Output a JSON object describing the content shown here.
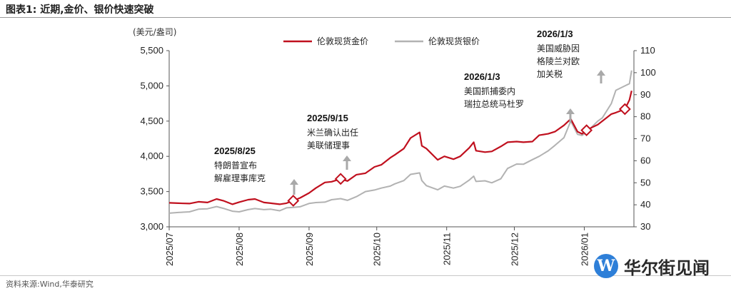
{
  "header": {
    "title": "图表1:  近期,金价、银价快速突破"
  },
  "source": "资料来源:Wind,华泰研究",
  "watermark": {
    "logo_letter": "W",
    "text": "华尔街见闻"
  },
  "left_unit": "(美元/盎司)",
  "chart_data": {
    "type": "line",
    "x_ticks": [
      "2025/07",
      "2025/08",
      "2025/09",
      "2025/10",
      "2025/11",
      "2025/12",
      "2026/01"
    ],
    "y_left_ticks": [
      "3,000",
      "3,500",
      "4,000",
      "4,500",
      "5,000",
      "5,500"
    ],
    "y_left_range": [
      3000,
      5500
    ],
    "y_right_ticks": [
      "30",
      "40",
      "50",
      "60",
      "70",
      "80",
      "90",
      "100",
      "110"
    ],
    "y_right_range": [
      30,
      110
    ],
    "legend": {
      "position": "top-center"
    },
    "colors": {
      "gold": "#c0101e",
      "silver": "#b2b2b2",
      "arrow": "#a9a9a9"
    },
    "series": [
      {
        "name": "伦敦现货金价",
        "axis": "left",
        "points": [
          [
            "2025-07-01",
            3340
          ],
          [
            "2025-07-05",
            3335
          ],
          [
            "2025-07-10",
            3330
          ],
          [
            "2025-07-14",
            3355
          ],
          [
            "2025-07-18",
            3345
          ],
          [
            "2025-07-22",
            3395
          ],
          [
            "2025-07-25",
            3370
          ],
          [
            "2025-07-29",
            3320
          ],
          [
            "2025-08-01",
            3350
          ],
          [
            "2025-08-05",
            3385
          ],
          [
            "2025-08-08",
            3395
          ],
          [
            "2025-08-12",
            3345
          ],
          [
            "2025-08-15",
            3335
          ],
          [
            "2025-08-19",
            3320
          ],
          [
            "2025-08-22",
            3335
          ],
          [
            "2025-08-25",
            3370
          ],
          [
            "2025-08-28",
            3410
          ],
          [
            "2025-09-01",
            3480
          ],
          [
            "2025-09-04",
            3550
          ],
          [
            "2025-09-08",
            3630
          ],
          [
            "2025-09-11",
            3640
          ],
          [
            "2025-09-15",
            3680
          ],
          [
            "2025-09-18",
            3650
          ],
          [
            "2025-09-22",
            3740
          ],
          [
            "2025-09-26",
            3760
          ],
          [
            "2025-09-30",
            3850
          ],
          [
            "2025-10-03",
            3880
          ],
          [
            "2025-10-07",
            3980
          ],
          [
            "2025-10-09",
            4020
          ],
          [
            "2025-10-13",
            4110
          ],
          [
            "2025-10-16",
            4260
          ],
          [
            "2025-10-20",
            4340
          ],
          [
            "2025-10-21",
            4150
          ],
          [
            "2025-10-23",
            4110
          ],
          [
            "2025-10-28",
            3950
          ],
          [
            "2025-10-31",
            4000
          ],
          [
            "2025-11-04",
            3960
          ],
          [
            "2025-11-07",
            4000
          ],
          [
            "2025-11-11",
            4120
          ],
          [
            "2025-11-13",
            4200
          ],
          [
            "2025-11-14",
            4080
          ],
          [
            "2025-11-18",
            4060
          ],
          [
            "2025-11-21",
            4070
          ],
          [
            "2025-11-25",
            4140
          ],
          [
            "2025-11-28",
            4200
          ],
          [
            "2025-12-02",
            4210
          ],
          [
            "2025-12-05",
            4200
          ],
          [
            "2025-12-09",
            4210
          ],
          [
            "2025-12-12",
            4300
          ],
          [
            "2025-12-16",
            4320
          ],
          [
            "2025-12-19",
            4350
          ],
          [
            "2025-12-23",
            4440
          ],
          [
            "2025-12-26",
            4530
          ],
          [
            "2025-12-29",
            4350
          ],
          [
            "2025-12-31",
            4320
          ],
          [
            "2026-01-02",
            4370
          ],
          [
            "2026-01-05",
            4420
          ],
          [
            "2026-01-07",
            4450
          ],
          [
            "2026-01-09",
            4500
          ],
          [
            "2026-01-13",
            4600
          ],
          [
            "2026-01-15",
            4620
          ],
          [
            "2026-01-19",
            4670
          ],
          [
            "2026-01-21",
            4800
          ],
          [
            "2026-01-22",
            4930
          ]
        ],
        "markers": [
          [
            "2025-08-25",
            3370
          ],
          [
            "2025-09-15",
            3680
          ],
          [
            "2026-01-02",
            4370
          ],
          [
            "2026-01-19",
            4670
          ]
        ]
      },
      {
        "name": "伦敦现货银价",
        "axis": "right",
        "points": [
          [
            "2025-07-01",
            36.2
          ],
          [
            "2025-07-05",
            36.5
          ],
          [
            "2025-07-10",
            36.8
          ],
          [
            "2025-07-14",
            38.0
          ],
          [
            "2025-07-18",
            38.2
          ],
          [
            "2025-07-22",
            39.2
          ],
          [
            "2025-07-25",
            38.4
          ],
          [
            "2025-07-29",
            37.1
          ],
          [
            "2025-08-01",
            36.8
          ],
          [
            "2025-08-05",
            37.8
          ],
          [
            "2025-08-08",
            38.3
          ],
          [
            "2025-08-12",
            37.8
          ],
          [
            "2025-08-15",
            38.0
          ],
          [
            "2025-08-19",
            37.3
          ],
          [
            "2025-08-22",
            38.6
          ],
          [
            "2025-08-25",
            38.8
          ],
          [
            "2025-08-28",
            39.1
          ],
          [
            "2025-09-01",
            40.6
          ],
          [
            "2025-09-04",
            41.0
          ],
          [
            "2025-09-08",
            41.2
          ],
          [
            "2025-09-11",
            42.3
          ],
          [
            "2025-09-15",
            42.8
          ],
          [
            "2025-09-18",
            42.0
          ],
          [
            "2025-09-22",
            43.7
          ],
          [
            "2025-09-26",
            46.0
          ],
          [
            "2025-09-30",
            46.7
          ],
          [
            "2025-10-03",
            47.6
          ],
          [
            "2025-10-07",
            48.5
          ],
          [
            "2025-10-09",
            49.5
          ],
          [
            "2025-10-13",
            51.0
          ],
          [
            "2025-10-16",
            53.8
          ],
          [
            "2025-10-20",
            54.5
          ],
          [
            "2025-10-21",
            51.0
          ],
          [
            "2025-10-23",
            48.7
          ],
          [
            "2025-10-28",
            46.8
          ],
          [
            "2025-10-31",
            48.5
          ],
          [
            "2025-11-04",
            47.6
          ],
          [
            "2025-11-07",
            48.4
          ],
          [
            "2025-11-11",
            51.2
          ],
          [
            "2025-11-13",
            53.0
          ],
          [
            "2025-11-14",
            50.6
          ],
          [
            "2025-11-18",
            50.9
          ],
          [
            "2025-11-21",
            50.0
          ],
          [
            "2025-11-25",
            51.8
          ],
          [
            "2025-11-28",
            56.5
          ],
          [
            "2025-12-02",
            58.5
          ],
          [
            "2025-12-05",
            58.4
          ],
          [
            "2025-12-09",
            60.5
          ],
          [
            "2025-12-12",
            62.0
          ],
          [
            "2025-12-16",
            64.5
          ],
          [
            "2025-12-19",
            67.0
          ],
          [
            "2025-12-23",
            70.5
          ],
          [
            "2025-12-26",
            78.0
          ],
          [
            "2025-12-29",
            72.0
          ],
          [
            "2025-12-31",
            71.5
          ],
          [
            "2026-01-02",
            73.0
          ],
          [
            "2026-01-05",
            76.0
          ],
          [
            "2026-01-07",
            78.0
          ],
          [
            "2026-01-09",
            79.5
          ],
          [
            "2026-01-13",
            86.0
          ],
          [
            "2026-01-15",
            92.0
          ],
          [
            "2026-01-19",
            94.0
          ],
          [
            "2026-01-21",
            95.0
          ],
          [
            "2026-01-22",
            101.0
          ]
        ]
      }
    ],
    "annotations": [
      {
        "id": "a1",
        "date": "2025/8/25",
        "lines": [
          "特朗普宣布",
          "解雇理事库克"
        ]
      },
      {
        "id": "a2",
        "date": "2025/9/15",
        "lines": [
          "米兰确认出任",
          "美联储理事"
        ]
      },
      {
        "id": "a3",
        "date": "2026/1/3",
        "lines": [
          "美国抓捕委内",
          "瑞拉总统马杜罗"
        ]
      },
      {
        "id": "a4",
        "date": "2026/1/3",
        "lines": [
          "美国威胁因",
          "格陵兰对欧",
          "加关税"
        ]
      }
    ]
  }
}
